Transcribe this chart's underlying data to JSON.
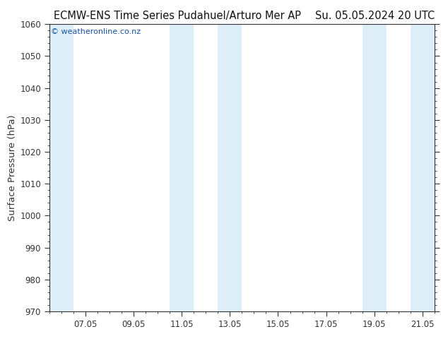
{
  "title_left": "ECMW-ENS Time Series Pudahuel/Arturo Mer AP",
  "title_right": "Su. 05.05.2024 20 UTC",
  "ylabel": "Surface Pressure (hPa)",
  "ylim": [
    970,
    1060
  ],
  "yticks": [
    970,
    980,
    990,
    1000,
    1010,
    1020,
    1030,
    1040,
    1050,
    1060
  ],
  "xtick_labels": [
    "07.05",
    "09.05",
    "11.05",
    "13.05",
    "15.05",
    "17.05",
    "19.05",
    "21.05"
  ],
  "xtick_positions": [
    2,
    4,
    6,
    8,
    10,
    12,
    14,
    16
  ],
  "xlim": [
    0.5,
    16.5
  ],
  "shaded_bands": [
    {
      "xmin": 0.5,
      "xmax": 1.5
    },
    {
      "xmin": 5.5,
      "xmax": 6.5
    },
    {
      "xmin": 7.5,
      "xmax": 8.5
    },
    {
      "xmin": 13.5,
      "xmax": 14.5
    },
    {
      "xmin": 15.5,
      "xmax": 16.5
    }
  ],
  "band_color": "#ddeef8",
  "background_color": "#ffffff",
  "watermark": "© weatheronline.co.nz",
  "watermark_color": "#1a52a0",
  "tick_color": "#333333",
  "spine_color": "#333333",
  "title_fontsize": 10.5,
  "tick_fontsize": 8.5,
  "ylabel_fontsize": 9.5
}
